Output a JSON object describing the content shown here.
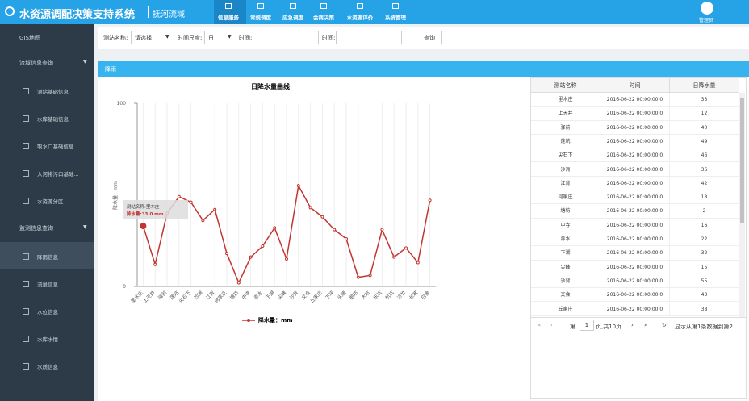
{
  "header": {
    "logo": "水资源调配决策支持系统",
    "subtitle": "抚河流域",
    "nav": [
      "信息服务",
      "常规调度",
      "应急调度",
      "会商决策",
      "水资源评价",
      "系统管理"
    ],
    "user": "管理员"
  },
  "sidebar": {
    "top": "GIS地图",
    "groups": [
      {
        "label": "流域信息查询",
        "items": [
          "测站基础信息",
          "水库基础信息",
          "取水口基础信息",
          "入河排污口基础...",
          "水资源分区"
        ]
      },
      {
        "label": "监测信息查询",
        "items": [
          "降雨信息",
          "流量信息",
          "水位信息",
          "水库水情",
          "水质信息"
        ]
      }
    ]
  },
  "filter": {
    "station_label": "测站名称:",
    "station_value": "请选择",
    "scale_label": "时间尺度:",
    "scale_value": "日",
    "time_labels": [
      "时间:",
      "时间:"
    ],
    "button": "查询"
  },
  "panel_title": "降雨",
  "chart_data": {
    "type": "line",
    "title": "日降水量曲线",
    "y_label": "降水量：mm",
    "categories": [
      "里木庄",
      "上天井",
      "驿前",
      "莲坑",
      "尖石下",
      "沙洲",
      "江背",
      "何家庄",
      "塘坊",
      "中寺",
      "赤水",
      "下湖",
      "尖峰",
      "沙背",
      "文会",
      "丘家庄",
      "下坪",
      "头陂",
      "鹅坊",
      "大坑",
      "东坑",
      "杭坑",
      "济竹",
      "长坡",
      "白舍"
    ],
    "series": [
      {
        "name": "降水量：mm",
        "color": "#c23531",
        "values": [
          33,
          12,
          40,
          49,
          46,
          36,
          42,
          18,
          2,
          16,
          22,
          32,
          15,
          55,
          43,
          38,
          31,
          26,
          5,
          6,
          31,
          16,
          21,
          13,
          47
        ]
      }
    ],
    "ylim": [
      0,
      100
    ],
    "yticks": [
      0,
      100
    ],
    "grid": true,
    "tooltip": [
      "测站名称:里木庄",
      "降水量:33.0 mm"
    ]
  },
  "table": {
    "columns": [
      "测站名称",
      "时间",
      "日降水量"
    ],
    "rows": [
      [
        "里木庄",
        "2016-06-22 00:00:00.0",
        "33"
      ],
      [
        "上天井",
        "2016-06-22 00:00:00.0",
        "12"
      ],
      [
        "驿前",
        "2016-06-22 00:00:00.0",
        "40"
      ],
      [
        "莲坑",
        "2016-06-22 00:00:00.0",
        "49"
      ],
      [
        "尖石下",
        "2016-06-22 00:00:00.0",
        "46"
      ],
      [
        "沙洲",
        "2016-06-22 00:00:00.0",
        "36"
      ],
      [
        "江背",
        "2016-06-22 00:00:00.0",
        "42"
      ],
      [
        "何家庄",
        "2016-06-22 00:00:00.0",
        "18"
      ],
      [
        "塘坊",
        "2016-06-22 00:00:00.0",
        "2"
      ],
      [
        "中寺",
        "2016-06-22 00:00:00.0",
        "16"
      ],
      [
        "赤水",
        "2016-06-22 00:00:00.0",
        "22"
      ],
      [
        "下湖",
        "2016-06-22 00:00:00.0",
        "32"
      ],
      [
        "尖峰",
        "2016-06-22 00:00:00.0",
        "15"
      ],
      [
        "沙背",
        "2016-06-22 00:00:00.0",
        "55"
      ],
      [
        "文会",
        "2016-06-22 00:00:00.0",
        "43"
      ],
      [
        "丘家庄",
        "2016-06-22 00:00:00.0",
        "38"
      ]
    ]
  },
  "pagination": {
    "page_prefix": "第",
    "page": "1",
    "page_suffix": "页,共10页",
    "info": "显示从第1条数据到第2"
  }
}
